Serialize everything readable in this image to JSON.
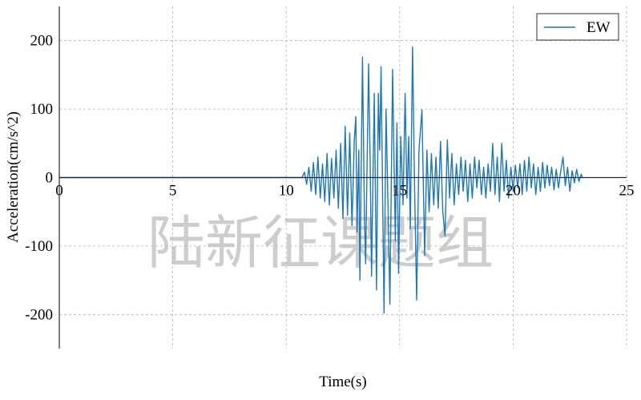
{
  "chart_data": {
    "type": "line",
    "title": "",
    "xlabel": "Time(s)",
    "ylabel": "Acceleration(cm/s^2)",
    "xlim": [
      0,
      25
    ],
    "ylim": [
      -250,
      250
    ],
    "xticks": [
      0,
      5,
      10,
      15,
      20,
      25
    ],
    "yticks": [
      200,
      100,
      0,
      -100,
      -200
    ],
    "grid": true,
    "legend_position": "top-right",
    "watermark": "陆新征课题组",
    "series": [
      {
        "name": "EW",
        "color": "#1f77b4",
        "points": [
          [
            0,
            0
          ],
          [
            10.7,
            0
          ],
          [
            10.8,
            8
          ],
          [
            10.9,
            -10
          ],
          [
            11.0,
            15
          ],
          [
            11.1,
            -20
          ],
          [
            11.2,
            22
          ],
          [
            11.3,
            -25
          ],
          [
            11.4,
            30
          ],
          [
            11.5,
            -30
          ],
          [
            11.6,
            20
          ],
          [
            11.7,
            -35
          ],
          [
            11.8,
            35
          ],
          [
            11.9,
            -40
          ],
          [
            12.0,
            28
          ],
          [
            12.1,
            -30
          ],
          [
            12.2,
            40
          ],
          [
            12.3,
            -45
          ],
          [
            12.4,
            50
          ],
          [
            12.5,
            -60
          ],
          [
            12.6,
            75
          ],
          [
            12.7,
            -55
          ],
          [
            12.8,
            65
          ],
          [
            12.9,
            -70
          ],
          [
            13.0,
            55
          ],
          [
            13.07,
            89
          ],
          [
            13.12,
            -80
          ],
          [
            13.2,
            40
          ],
          [
            13.25,
            -150
          ],
          [
            13.36,
            176
          ],
          [
            13.45,
            -60
          ],
          [
            13.5,
            -126
          ],
          [
            13.63,
            166
          ],
          [
            13.7,
            20
          ],
          [
            13.76,
            -144
          ],
          [
            13.88,
            123
          ],
          [
            13.98,
            -164
          ],
          [
            14.06,
            123
          ],
          [
            14.12,
            40
          ],
          [
            14.18,
            162
          ],
          [
            14.31,
            -198
          ],
          [
            14.4,
            100
          ],
          [
            14.5,
            -60
          ],
          [
            14.57,
            -185
          ],
          [
            14.69,
            158
          ],
          [
            14.75,
            30
          ],
          [
            14.81,
            -93
          ],
          [
            14.88,
            80
          ],
          [
            14.95,
            -140
          ],
          [
            15.05,
            60
          ],
          [
            15.15,
            -40
          ],
          [
            15.24,
            123
          ],
          [
            15.32,
            -30
          ],
          [
            15.4,
            60
          ],
          [
            15.47,
            -75
          ],
          [
            15.57,
            191
          ],
          [
            15.66,
            -20
          ],
          [
            15.75,
            -179
          ],
          [
            15.85,
            40
          ],
          [
            15.98,
            99
          ],
          [
            16.1,
            -114
          ],
          [
            16.2,
            40
          ],
          [
            16.3,
            -50
          ],
          [
            16.4,
            35
          ],
          [
            16.5,
            -40
          ],
          [
            16.6,
            30
          ],
          [
            16.7,
            -45
          ],
          [
            16.8,
            53
          ],
          [
            16.9,
            -50
          ],
          [
            17.0,
            -85
          ],
          [
            17.1,
            55
          ],
          [
            17.2,
            -30
          ],
          [
            17.3,
            35
          ],
          [
            17.4,
            -40
          ],
          [
            17.5,
            20
          ],
          [
            17.6,
            -25
          ],
          [
            17.7,
            30
          ],
          [
            17.8,
            -20
          ],
          [
            17.9,
            25
          ],
          [
            18.0,
            -35
          ],
          [
            18.1,
            20
          ],
          [
            18.2,
            -30
          ],
          [
            18.3,
            30
          ],
          [
            18.4,
            -15
          ],
          [
            18.5,
            25
          ],
          [
            18.6,
            -25
          ],
          [
            18.7,
            15
          ],
          [
            18.8,
            -30
          ],
          [
            18.9,
            20
          ],
          [
            19.0,
            -20
          ],
          [
            19.1,
            50
          ],
          [
            19.2,
            -25
          ],
          [
            19.3,
            30
          ],
          [
            19.4,
            -35
          ],
          [
            19.5,
            50
          ],
          [
            19.6,
            -20
          ],
          [
            19.7,
            25
          ],
          [
            19.8,
            -30
          ],
          [
            19.9,
            15
          ],
          [
            20.0,
            -20
          ],
          [
            20.1,
            18
          ],
          [
            20.2,
            -15
          ],
          [
            20.3,
            20
          ],
          [
            20.4,
            -25
          ],
          [
            20.5,
            25
          ],
          [
            20.6,
            -20
          ],
          [
            20.7,
            30
          ],
          [
            20.8,
            -15
          ],
          [
            20.9,
            20
          ],
          [
            21.0,
            -25
          ],
          [
            21.1,
            15
          ],
          [
            21.2,
            -20
          ],
          [
            21.3,
            22
          ],
          [
            21.4,
            -15
          ],
          [
            21.5,
            18
          ],
          [
            21.6,
            -12
          ],
          [
            21.7,
            15
          ],
          [
            21.8,
            -18
          ],
          [
            21.9,
            12
          ],
          [
            22.0,
            -15
          ],
          [
            22.1,
            10
          ],
          [
            22.2,
            30
          ],
          [
            22.3,
            -12
          ],
          [
            22.4,
            15
          ],
          [
            22.5,
            -20
          ],
          [
            22.6,
            10
          ],
          [
            22.7,
            -8
          ],
          [
            22.8,
            12
          ],
          [
            22.9,
            -6
          ],
          [
            23.0,
            5
          ],
          [
            23.05,
            0
          ]
        ]
      }
    ]
  }
}
